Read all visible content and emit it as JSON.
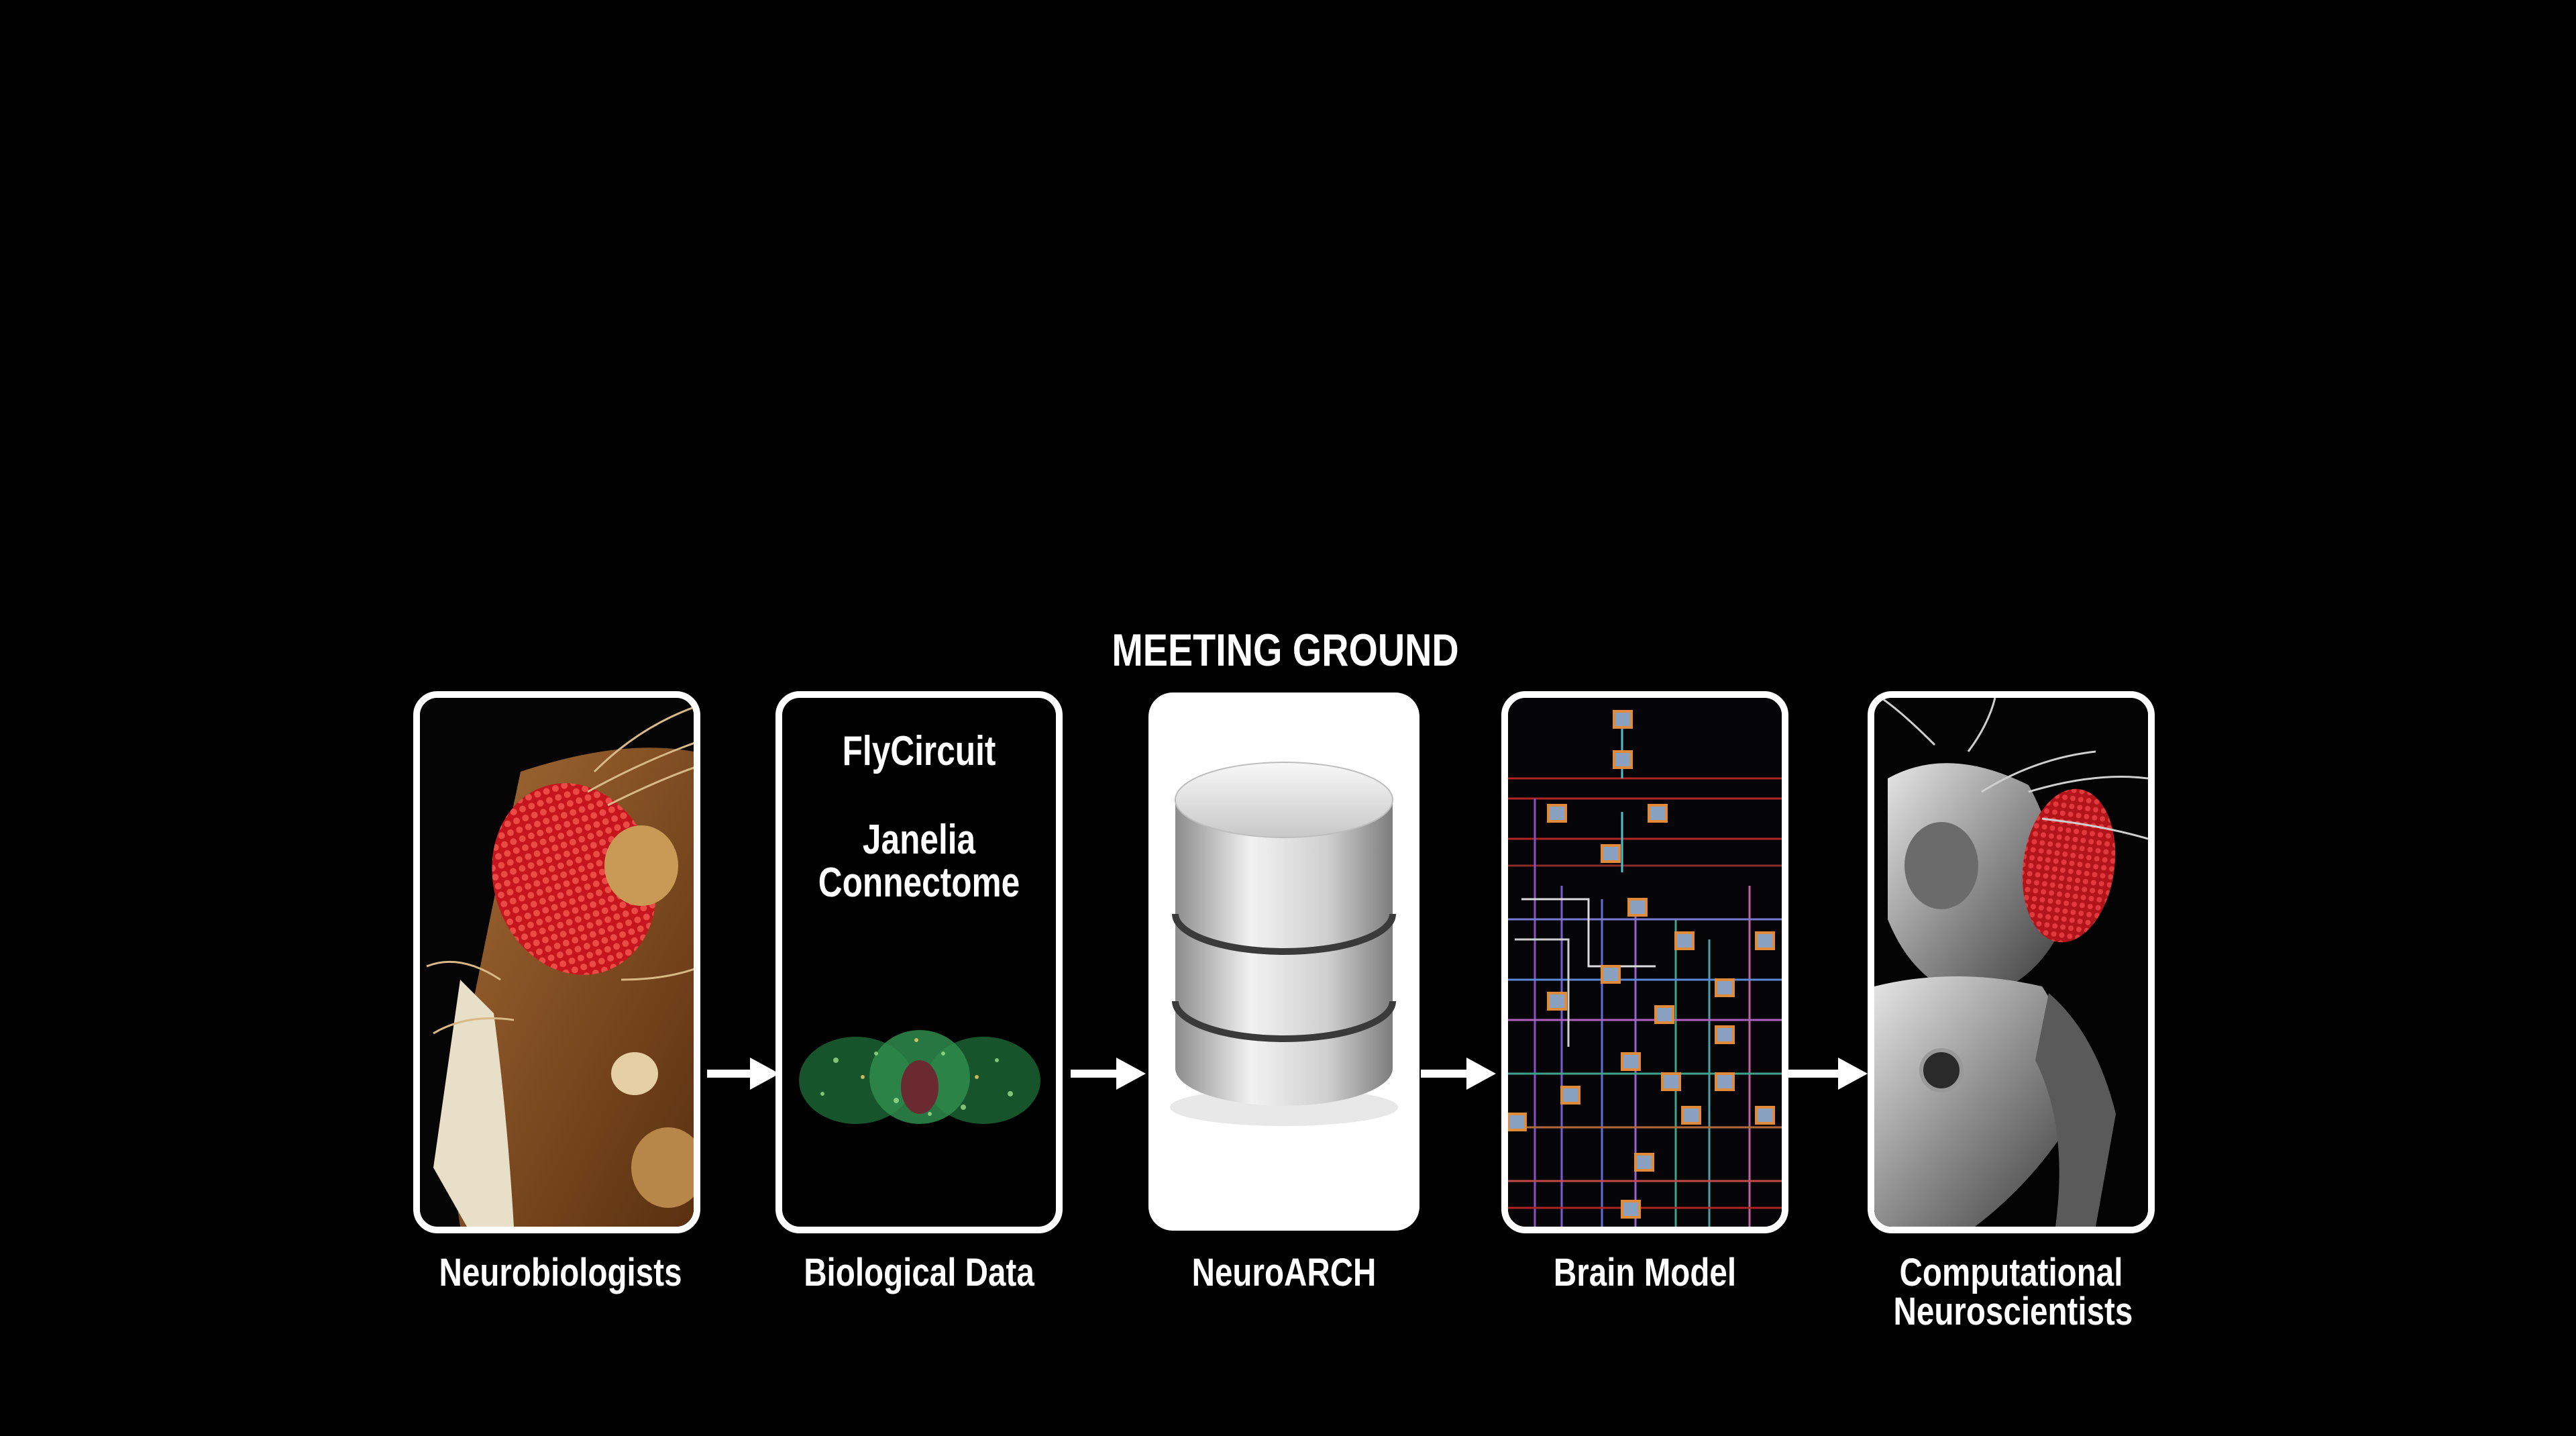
{
  "header": {
    "title": "MEETING GROUND"
  },
  "stages": [
    {
      "label": "Neurobiologists"
    },
    {
      "label": "Biological Data",
      "items": [
        "FlyCircuit",
        "Janelia Connectome"
      ]
    },
    {
      "label": "NeuroARCH"
    },
    {
      "label": "Brain Model"
    },
    {
      "label": "Computational Neuroscientists"
    }
  ],
  "colors": {
    "background": "#000000",
    "stroke": "#ffffff",
    "fly_eye": "#d8262a",
    "fly_body": "#8a4d1f"
  }
}
